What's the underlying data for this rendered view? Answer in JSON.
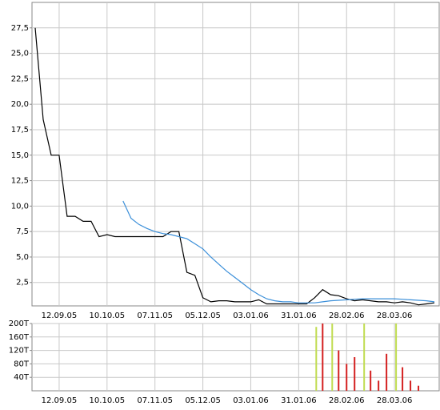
{
  "chart_data": [
    {
      "type": "line",
      "categories": [
        null,
        null,
        null,
        "12.09.05",
        null,
        null,
        null,
        null,
        null,
        "10.10.05",
        null,
        null,
        null,
        null,
        null,
        "07.11.05",
        null,
        null,
        null,
        null,
        null,
        "05.12.05",
        null,
        null,
        null,
        null,
        null,
        "03.01.06",
        null,
        null,
        null,
        null,
        null,
        "31.01.06",
        null,
        null,
        null,
        null,
        null,
        "28.02.06",
        null,
        null,
        null,
        null,
        null,
        "28.03.06",
        null,
        null,
        null,
        null,
        null
      ],
      "series": [
        {
          "color": "#000000",
          "values": [
            27.5,
            18.5,
            15,
            15,
            9,
            9,
            8.5,
            8.5,
            7,
            7.2,
            7,
            7,
            7,
            7,
            7,
            7,
            7,
            7.5,
            7.5,
            3.5,
            3.2,
            1,
            0.6,
            0.7,
            0.7,
            0.6,
            0.6,
            0.6,
            0.8,
            0.4,
            0.4,
            0.4,
            0.4,
            0.4,
            0.4,
            1.0,
            1.8,
            1.3,
            1.2,
            0.9,
            0.7,
            0.8,
            0.7,
            0.6,
            0.6,
            0.5,
            0.6,
            0.5,
            0.3,
            0.4,
            0.5
          ]
        },
        {
          "color": "#3b8fd9",
          "values": [
            null,
            null,
            null,
            null,
            null,
            null,
            null,
            null,
            null,
            null,
            null,
            10.5,
            8.8,
            8.2,
            7.8,
            7.5,
            7.3,
            7.2,
            7.0,
            6.8,
            6.3,
            5.8,
            5.0,
            4.3,
            3.6,
            3.0,
            2.4,
            1.8,
            1.3,
            0.9,
            0.7,
            0.6,
            0.6,
            0.5,
            0.5,
            0.5,
            0.6,
            0.7,
            0.75,
            0.8,
            0.85,
            0.9,
            0.9,
            0.9,
            0.9,
            0.9,
            0.85,
            0.8,
            0.75,
            0.7,
            0.6
          ]
        }
      ],
      "ylim": [
        0.2,
        30
      ],
      "yticks": [
        {
          "value": 2.5,
          "label": "2,5"
        },
        {
          "value": 5,
          "label": "5,0"
        },
        {
          "value": 7.5,
          "label": "7,5"
        },
        {
          "value": 10,
          "label": "10,0"
        },
        {
          "value": 12.5,
          "label": "12,5"
        },
        {
          "value": 15,
          "label": "15,0"
        },
        {
          "value": 17.5,
          "label": "17,5"
        },
        {
          "value": 20,
          "label": "20,0"
        },
        {
          "value": 22.5,
          "label": "22,5"
        },
        {
          "value": 25,
          "label": "25,0"
        },
        {
          "value": 27.5,
          "label": "27,5"
        }
      ],
      "grid": true
    },
    {
      "type": "bar",
      "categories": [
        null,
        null,
        null,
        "12.09.05",
        null,
        null,
        null,
        null,
        null,
        "10.10.05",
        null,
        null,
        null,
        null,
        null,
        "07.11.05",
        null,
        null,
        null,
        null,
        null,
        "05.12.05",
        null,
        null,
        null,
        null,
        null,
        "03.01.06",
        null,
        null,
        null,
        null,
        null,
        "31.01.06",
        null,
        null,
        null,
        null,
        null,
        "28.02.06",
        null,
        null,
        null,
        null,
        null,
        "28.03.06",
        null,
        null,
        null,
        null,
        null
      ],
      "series": [
        {
          "color": "#d42020",
          "values": [
            null,
            null,
            null,
            null,
            null,
            null,
            null,
            null,
            null,
            null,
            null,
            null,
            null,
            null,
            null,
            null,
            null,
            null,
            null,
            null,
            null,
            null,
            null,
            null,
            null,
            null,
            null,
            null,
            null,
            null,
            null,
            null,
            null,
            null,
            null,
            null,
            200000,
            null,
            120000,
            80000,
            100000,
            null,
            60000,
            30000,
            110000,
            null,
            70000,
            30000,
            15000,
            null,
            null
          ]
        },
        {
          "color": "#c0dc50",
          "values": [
            null,
            null,
            null,
            null,
            null,
            null,
            null,
            null,
            null,
            null,
            null,
            null,
            null,
            null,
            null,
            null,
            null,
            null,
            null,
            null,
            null,
            null,
            null,
            null,
            null,
            null,
            null,
            null,
            null,
            null,
            null,
            null,
            null,
            null,
            null,
            190000,
            null,
            200000,
            null,
            null,
            null,
            200000,
            null,
            null,
            null,
            200000,
            null,
            null,
            null,
            null,
            null
          ]
        }
      ],
      "ylim": [
        0,
        200000
      ],
      "yticks": [
        {
          "value": 40000,
          "label": "40T"
        },
        {
          "value": 80000,
          "label": "80T"
        },
        {
          "value": 120000,
          "label": "120T"
        },
        {
          "value": 160000,
          "label": "160T"
        },
        {
          "value": 200000,
          "label": "200T"
        }
      ],
      "grid": true
    }
  ]
}
